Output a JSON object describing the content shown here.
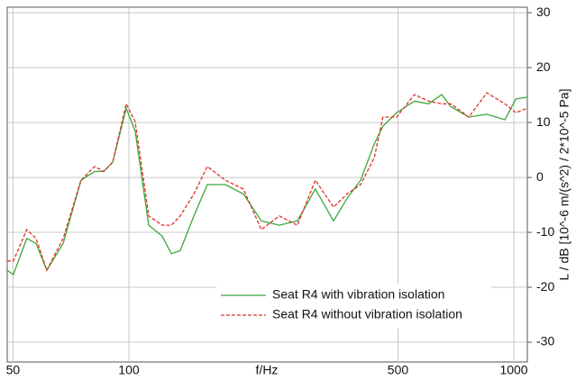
{
  "chart_data": {
    "type": "line",
    "x_label": "f/Hz",
    "y_label": "L / dB [10^-6 m/(s^2) / 2*10^-5 Pa]",
    "xscale": "log",
    "xlim": [
      48.3,
      1084
    ],
    "xticks": [
      50,
      100,
      500,
      1000
    ],
    "ylim": [
      -33.6,
      31
    ],
    "yticks": [
      -30,
      -20,
      -10,
      0,
      10,
      20,
      30
    ],
    "grid": true,
    "legend": "lower right",
    "x": [
      48.3,
      50.1,
      54.3,
      57.4,
      61.2,
      67.5,
      75.1,
      81.5,
      86,
      90.8,
      98.4,
      103.8,
      112.6,
      122.1,
      128.9,
      136,
      147.5,
      159.9,
      178,
      198.3,
      220.8,
      246,
      274,
      305,
      340,
      369,
      400,
      434,
      457,
      496,
      552,
      600,
      650,
      686,
      764,
      851,
      948,
      1012,
      1084
    ],
    "series": [
      {
        "name": "Seat R4 with vibration isolation",
        "color": "#3aa83a",
        "dash": "solid",
        "values": [
          -16.9,
          -17.7,
          -11.1,
          -12,
          -16.9,
          -12,
          -0.5,
          1.1,
          1.1,
          2.8,
          12.6,
          8.5,
          -8.7,
          -10.7,
          -13.9,
          -13.3,
          -7,
          -1.3,
          -1.3,
          -3,
          -7.9,
          -8.7,
          -7.9,
          -2.1,
          -7.9,
          -3.8,
          -0.5,
          6.1,
          9.3,
          11.8,
          13.9,
          13.4,
          15.1,
          12.9,
          11,
          11.5,
          10.5,
          14.3,
          14.6
        ]
      },
      {
        "name": "Seat R4 without vibration isolation",
        "color": "#e0302a",
        "dash": "dashed",
        "values": [
          -15.2,
          -15.2,
          -9.5,
          -11.1,
          -16.9,
          -11.1,
          -0.5,
          2,
          1.1,
          2.8,
          13.4,
          10.2,
          -7,
          -8.7,
          -8.7,
          -7,
          -3,
          2,
          -0.5,
          -2.1,
          -9.5,
          -7,
          -8.7,
          -0.5,
          -5.4,
          -3,
          -1.3,
          3.6,
          11,
          11,
          15.1,
          13.9,
          13.4,
          13.4,
          11,
          15.4,
          13.4,
          11.8,
          12.6
        ]
      }
    ]
  }
}
